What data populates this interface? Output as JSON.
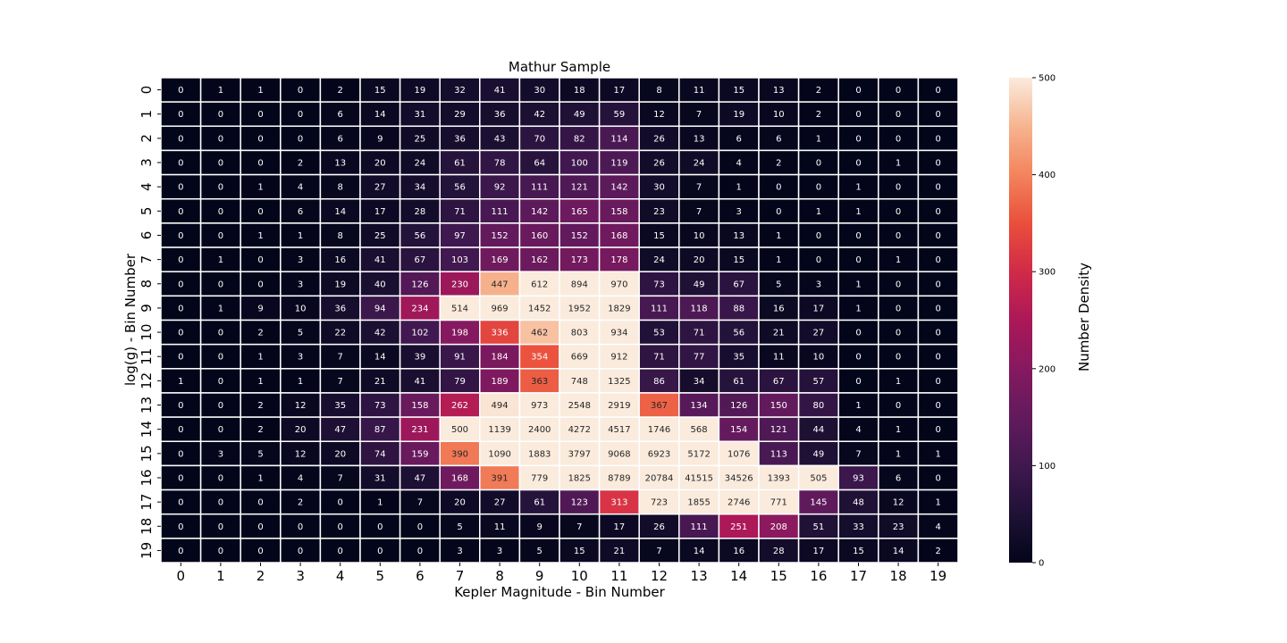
{
  "chart_data": {
    "type": "heatmap",
    "title": "Mathur Sample",
    "xlabel": "Kepler Magnitude - Bin Number",
    "ylabel": "log(g) - Bin Number",
    "x_ticks": [
      "0",
      "1",
      "2",
      "3",
      "4",
      "5",
      "6",
      "7",
      "8",
      "9",
      "10",
      "11",
      "12",
      "13",
      "14",
      "15",
      "16",
      "17",
      "18",
      "19"
    ],
    "y_ticks": [
      "0",
      "1",
      "2",
      "3",
      "4",
      "5",
      "6",
      "7",
      "8",
      "9",
      "10",
      "11",
      "12",
      "13",
      "14",
      "15",
      "16",
      "17",
      "18",
      "19"
    ],
    "values": [
      [
        0,
        1,
        1,
        0,
        2,
        15,
        19,
        32,
        41,
        30,
        18,
        17,
        8,
        11,
        15,
        13,
        2,
        0,
        0,
        0
      ],
      [
        0,
        0,
        0,
        0,
        6,
        14,
        31,
        29,
        36,
        42,
        49,
        59,
        12,
        7,
        19,
        10,
        2,
        0,
        0,
        0
      ],
      [
        0,
        0,
        0,
        0,
        6,
        9,
        25,
        36,
        43,
        70,
        82,
        114,
        26,
        13,
        6,
        6,
        1,
        0,
        0,
        0
      ],
      [
        0,
        0,
        0,
        2,
        13,
        20,
        24,
        61,
        78,
        64,
        100,
        119,
        26,
        24,
        4,
        2,
        0,
        0,
        1,
        0
      ],
      [
        0,
        0,
        1,
        4,
        8,
        27,
        34,
        56,
        92,
        111,
        121,
        142,
        30,
        7,
        1,
        0,
        0,
        1,
        0,
        0
      ],
      [
        0,
        0,
        0,
        6,
        14,
        17,
        28,
        71,
        111,
        142,
        165,
        158,
        23,
        7,
        3,
        0,
        1,
        1,
        0,
        0
      ],
      [
        0,
        0,
        1,
        1,
        8,
        25,
        56,
        97,
        152,
        160,
        152,
        168,
        15,
        10,
        13,
        1,
        0,
        0,
        0,
        0
      ],
      [
        0,
        1,
        0,
        3,
        16,
        41,
        67,
        103,
        169,
        162,
        173,
        178,
        24,
        20,
        15,
        1,
        0,
        0,
        1,
        0
      ],
      [
        0,
        0,
        0,
        3,
        19,
        40,
        126,
        230,
        447,
        612,
        894,
        970,
        73,
        49,
        67,
        5,
        3,
        1,
        0,
        0
      ],
      [
        0,
        1,
        9,
        10,
        36,
        94,
        234,
        514,
        969,
        1452,
        1952,
        1829,
        111,
        118,
        88,
        16,
        17,
        1,
        0,
        0
      ],
      [
        0,
        0,
        2,
        5,
        22,
        42,
        102,
        198,
        336,
        462,
        803,
        934,
        53,
        71,
        56,
        21,
        27,
        0,
        0,
        0
      ],
      [
        0,
        0,
        1,
        3,
        7,
        14,
        39,
        91,
        184,
        354,
        669,
        912,
        71,
        77,
        35,
        11,
        10,
        0,
        0,
        0
      ],
      [
        1,
        0,
        1,
        1,
        7,
        21,
        41,
        79,
        189,
        363,
        748,
        1325,
        86,
        34,
        61,
        67,
        57,
        0,
        1,
        0
      ],
      [
        0,
        0,
        2,
        12,
        35,
        73,
        158,
        262,
        494,
        973,
        2548,
        2919,
        367,
        134,
        126,
        150,
        80,
        1,
        0,
        0
      ],
      [
        0,
        0,
        2,
        20,
        47,
        87,
        231,
        500,
        1139,
        2400,
        4272,
        4517,
        1746,
        568,
        154,
        121,
        44,
        4,
        1,
        0
      ],
      [
        0,
        3,
        5,
        12,
        20,
        74,
        159,
        390,
        1090,
        1883,
        3797,
        9068,
        6923,
        5172,
        1076,
        113,
        49,
        7,
        1,
        1
      ],
      [
        0,
        0,
        1,
        4,
        7,
        31,
        47,
        168,
        391,
        779,
        1825,
        8789,
        20784,
        41515,
        34526,
        1393,
        505,
        93,
        6,
        0
      ],
      [
        0,
        0,
        0,
        2,
        0,
        1,
        7,
        20,
        27,
        61,
        123,
        313,
        723,
        1855,
        2746,
        771,
        145,
        48,
        12,
        1
      ],
      [
        0,
        0,
        0,
        0,
        0,
        0,
        0,
        5,
        11,
        9,
        7,
        17,
        26,
        111,
        251,
        208,
        51,
        33,
        23,
        4
      ],
      [
        0,
        0,
        0,
        0,
        0,
        0,
        0,
        3,
        3,
        5,
        15,
        21,
        7,
        14,
        16,
        28,
        17,
        15,
        14,
        2
      ]
    ],
    "vmin": 0,
    "vmax": 500,
    "colormap": "rocket",
    "colorbar": {
      "label": "Number Density",
      "ticks": [
        "0",
        "100",
        "200",
        "300",
        "400",
        "500"
      ],
      "tick_values": [
        0,
        100,
        200,
        300,
        400,
        500
      ]
    },
    "cell_border_color": "#ffffff",
    "grid": false
  }
}
